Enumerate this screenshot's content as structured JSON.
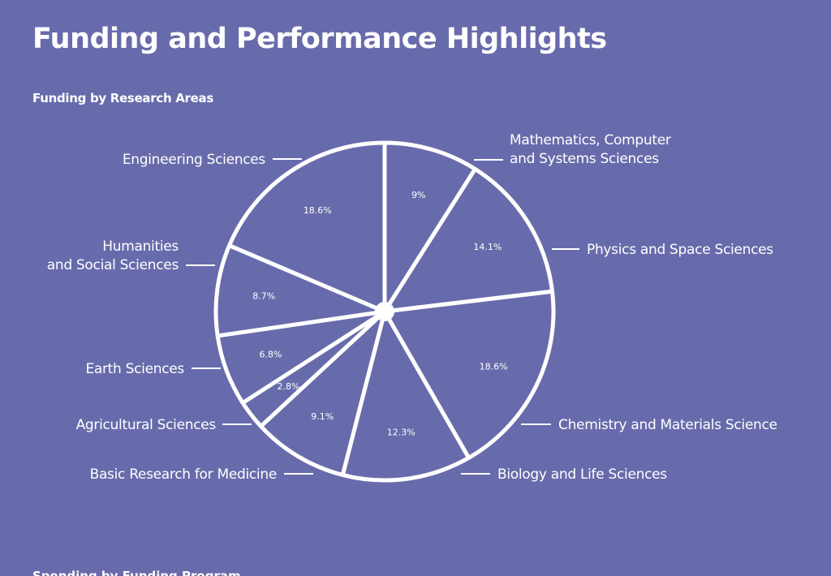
{
  "page": {
    "title": "Funding and Performance Highlights",
    "next_heading": "Spending by Funding Program"
  },
  "chart_data": {
    "type": "pie",
    "title": "Funding by Research Areas",
    "unit": "%",
    "start_angle_deg": 0,
    "direction": "clockwise",
    "colors": {
      "background": "#686bab",
      "stroke": "#ffffff",
      "text": "#ffffff"
    },
    "slices": [
      {
        "name": "Mathematics, Computer and Systems Sciences",
        "label_lines": [
          "Mathematics, Computer",
          "and Systems Sciences"
        ],
        "value": 9,
        "pct_label": "9%"
      },
      {
        "name": "Physics and Space Sciences",
        "label_lines": [
          "Physics and Space Sciences"
        ],
        "value": 14.1,
        "pct_label": "14.1%"
      },
      {
        "name": "Chemistry and Materials Science",
        "label_lines": [
          "Chemistry and Materials Science"
        ],
        "value": 18.6,
        "pct_label": "18.6%"
      },
      {
        "name": "Biology and Life Sciences",
        "label_lines": [
          "Biology and Life Sciences"
        ],
        "value": 12.3,
        "pct_label": "12.3%"
      },
      {
        "name": "Basic Research for Medicine",
        "label_lines": [
          "Basic Research for Medicine"
        ],
        "value": 9.1,
        "pct_label": "9.1%"
      },
      {
        "name": "Agricultural Sciences",
        "label_lines": [
          "Agricultural Sciences"
        ],
        "value": 2.8,
        "pct_label": "2.8%"
      },
      {
        "name": "Earth Sciences",
        "label_lines": [
          "Earth Sciences"
        ],
        "value": 6.8,
        "pct_label": "6.8%"
      },
      {
        "name": "Humanities and Social Sciences",
        "label_lines": [
          "Humanities",
          "and Social Sciences"
        ],
        "value": 8.7,
        "pct_label": "8.7%"
      },
      {
        "name": "Engineering Sciences",
        "label_lines": [
          "Engineering Sciences"
        ],
        "value": 18.6,
        "pct_label": "18.6%"
      }
    ]
  }
}
